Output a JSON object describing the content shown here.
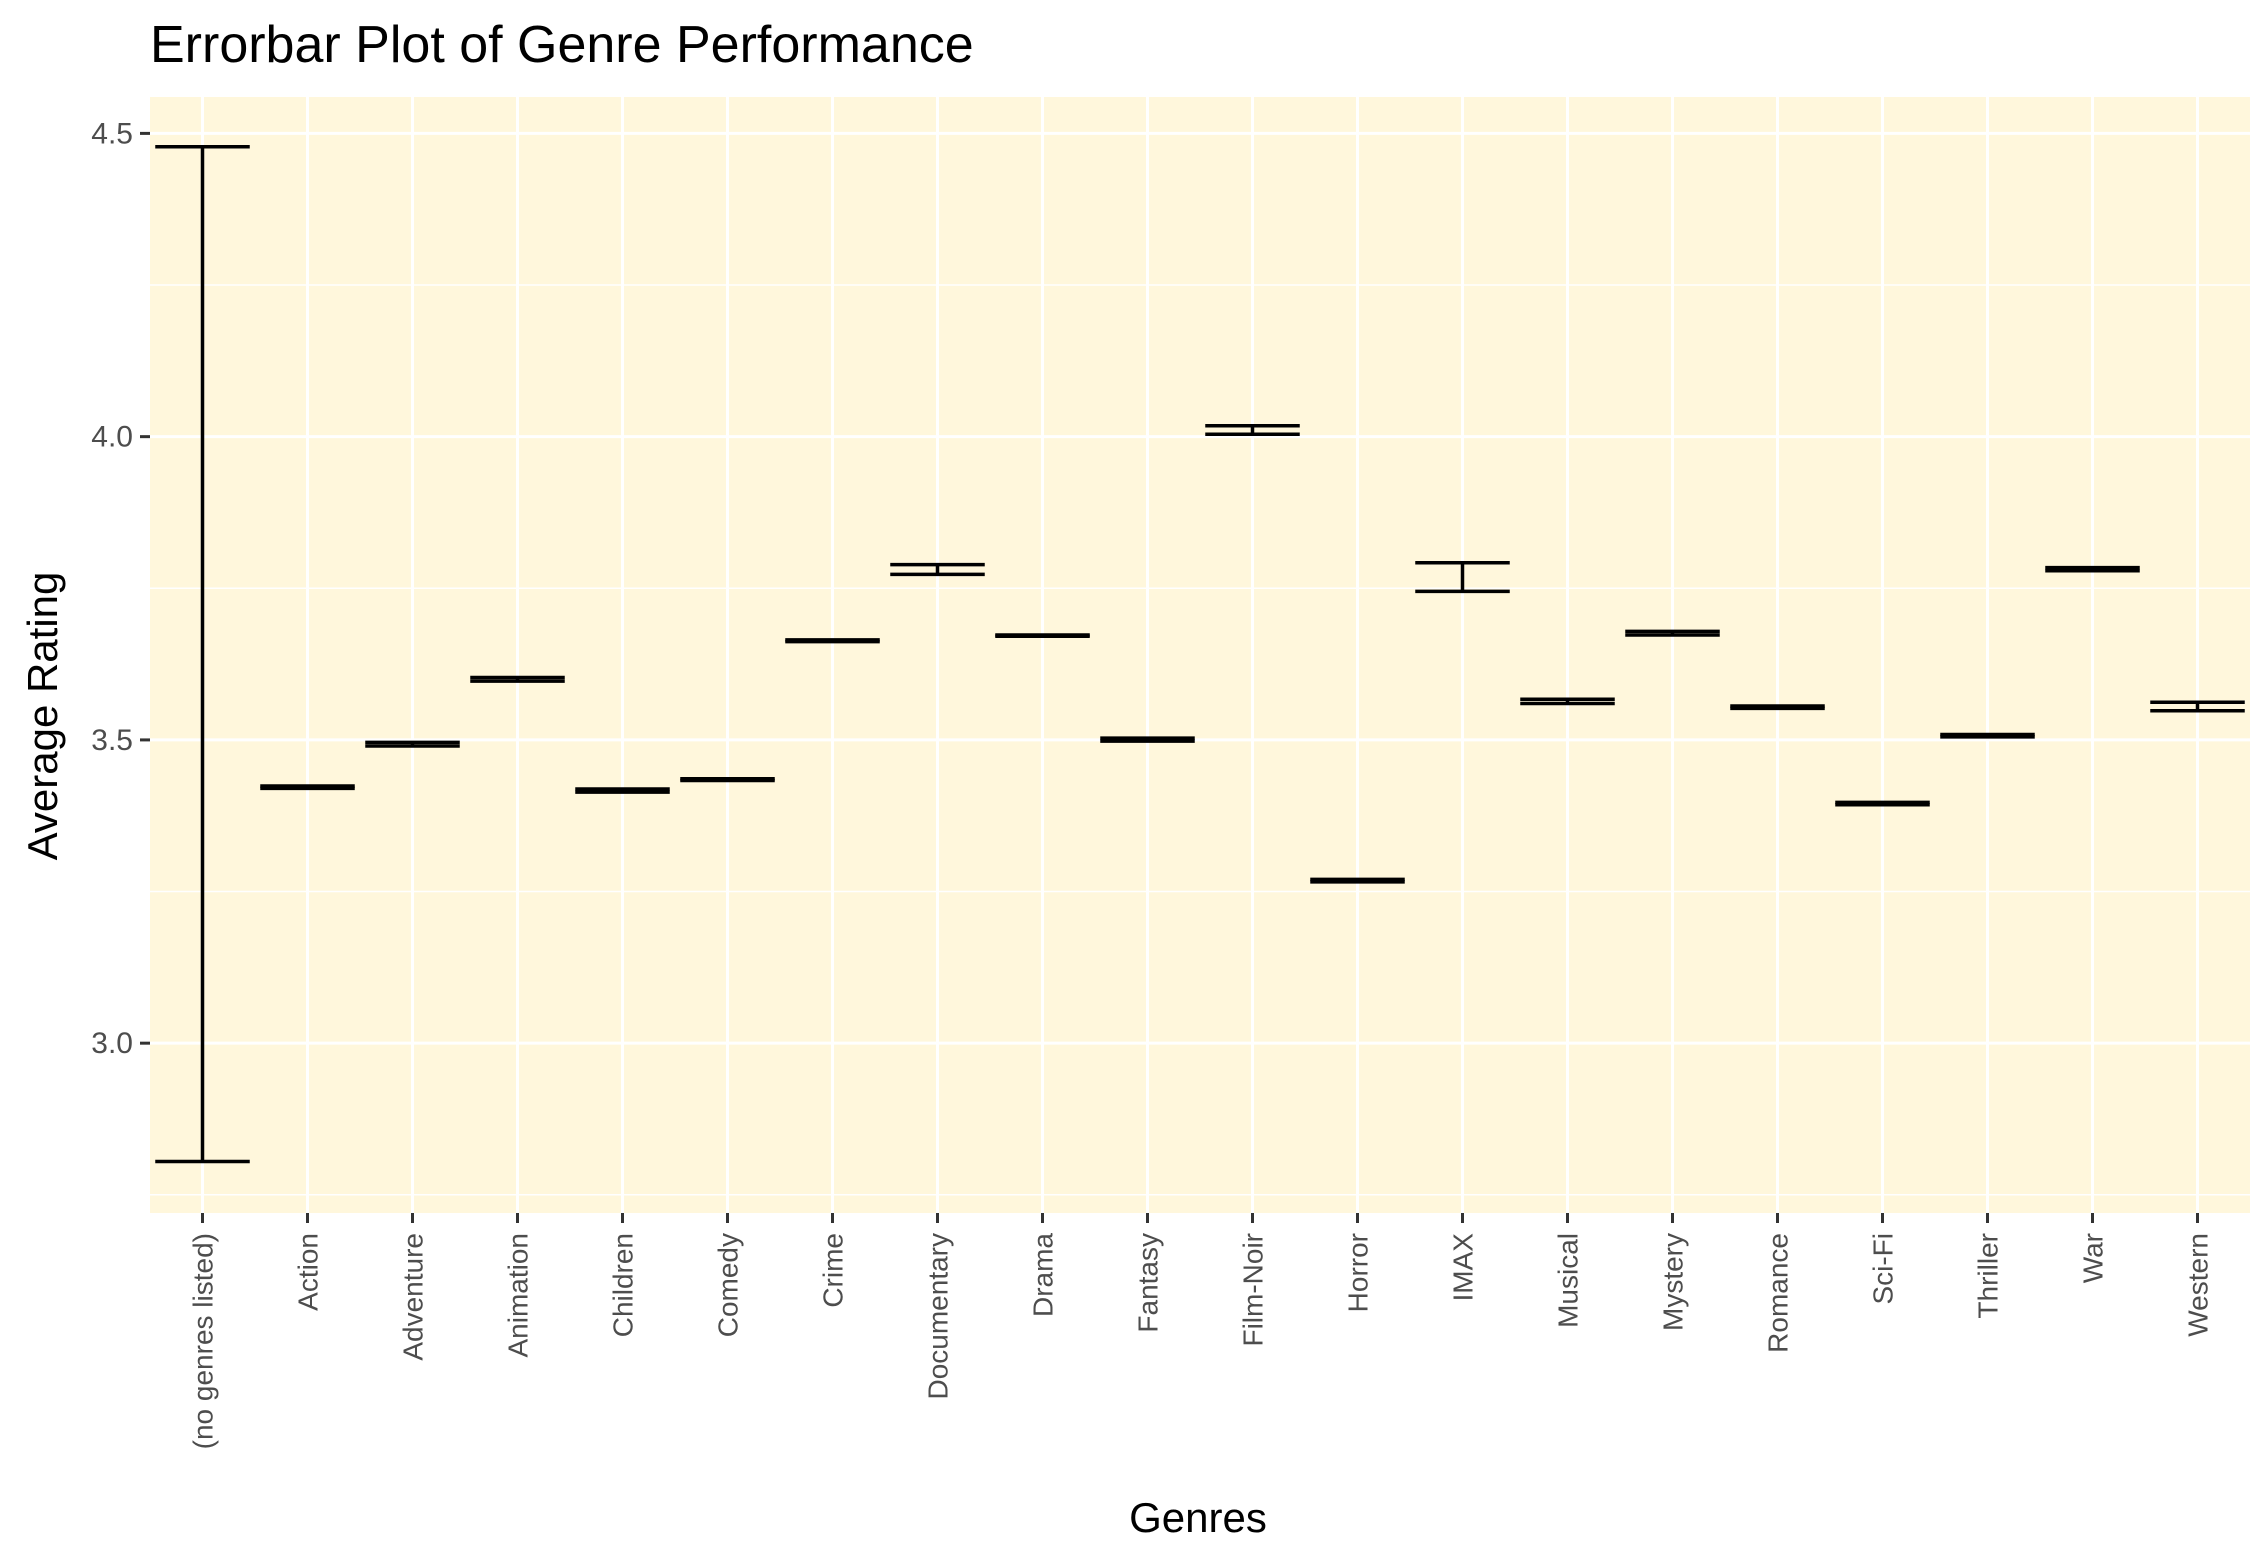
{
  "chart_data": {
    "type": "errorbar",
    "title": "Errorbar Plot of Genre Performance",
    "xlabel": "Genres",
    "ylabel": "Average Rating",
    "ylim": [
      2.72,
      4.56
    ],
    "yticks": [
      3.0,
      3.5,
      4.0,
      4.5
    ],
    "ytick_labels": [
      "3.0",
      "3.5",
      "4.0",
      "4.5"
    ],
    "grid": true,
    "legend": "none",
    "colors": {
      "panel_background": "#fff7dc",
      "grid": "#ffffff",
      "errorbar": "#000000",
      "tick_text": "#4d4d4d"
    },
    "categories": [
      "(no genres listed)",
      "Action",
      "Adventure",
      "Animation",
      "Children",
      "Comedy",
      "Crime",
      "Documentary",
      "Drama",
      "Fantasy",
      "Film-Noir",
      "Horror",
      "IMAX",
      "Musical",
      "Mystery",
      "Romance",
      "Sci-Fi",
      "Thriller",
      "War",
      "Western"
    ],
    "ymin": [
      2.805,
      3.42,
      3.49,
      3.597,
      3.414,
      3.433,
      3.662,
      3.773,
      3.671,
      3.498,
      4.004,
      3.266,
      3.745,
      3.56,
      3.673,
      3.552,
      3.393,
      3.505,
      3.779,
      3.548
    ],
    "ymax": [
      4.478,
      3.424,
      3.496,
      3.603,
      3.419,
      3.436,
      3.665,
      3.789,
      3.673,
      3.503,
      4.018,
      3.27,
      3.792,
      3.567,
      3.679,
      3.556,
      3.397,
      3.509,
      3.784,
      3.562
    ]
  }
}
